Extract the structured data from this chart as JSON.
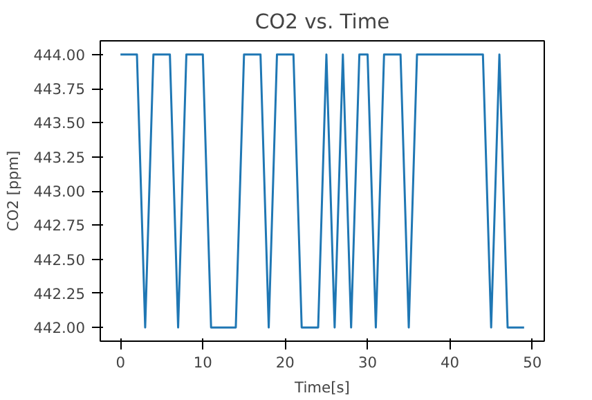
{
  "chart_data": {
    "type": "line",
    "title": "CO2 vs. Time",
    "xlabel": "Time[s]",
    "ylabel": "CO2 [ppm]",
    "x": [
      0,
      1,
      2,
      3,
      4,
      5,
      6,
      7,
      8,
      9,
      10,
      11,
      12,
      13,
      14,
      15,
      16,
      17,
      18,
      19,
      20,
      21,
      22,
      23,
      24,
      25,
      26,
      27,
      28,
      29,
      30,
      31,
      32,
      33,
      34,
      35,
      36,
      37,
      38,
      39,
      40,
      41,
      42,
      43,
      44,
      45,
      46,
      47,
      48,
      49
    ],
    "series": [
      {
        "color": "#1f77b4",
        "values": [
          444,
          444,
          444,
          442,
          444,
          444,
          444,
          442,
          444,
          444,
          444,
          442,
          442,
          442,
          442,
          444,
          444,
          444,
          442,
          444,
          444,
          444,
          442,
          442,
          442,
          444,
          442,
          444,
          442,
          444,
          444,
          442,
          444,
          444,
          444,
          442,
          444,
          444,
          444,
          444,
          444,
          444,
          444,
          444,
          444,
          442,
          444,
          442,
          442,
          442
        ]
      }
    ],
    "xlim": [
      -2.45,
      51.45
    ],
    "ylim": [
      441.9,
      444.1
    ],
    "xticks": [
      0,
      10,
      20,
      30,
      40,
      50
    ],
    "yticks": [
      {
        "value": 442,
        "label": "442.00"
      },
      {
        "value": 442.25,
        "label": "442.25"
      },
      {
        "value": 442.5,
        "label": "442.50"
      },
      {
        "value": 442.75,
        "label": "442.75"
      },
      {
        "value": 443,
        "label": "443.00"
      },
      {
        "value": 443.25,
        "label": "443.25"
      },
      {
        "value": 443.5,
        "label": "443.50"
      },
      {
        "value": 443.75,
        "label": "443.75"
      },
      {
        "value": 444,
        "label": "444.00"
      }
    ],
    "grid": false
  }
}
